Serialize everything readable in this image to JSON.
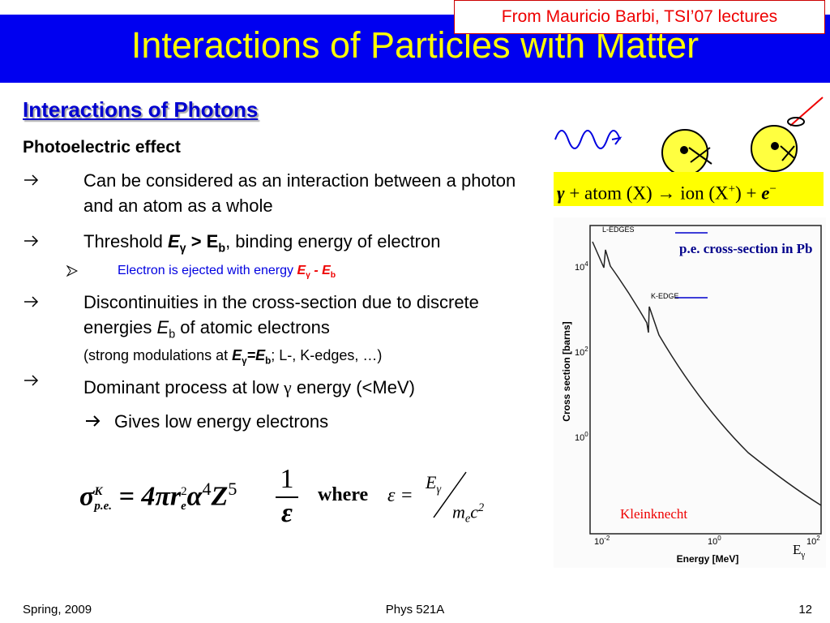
{
  "header": {
    "title": "Interactions of Particles with Matter",
    "credit": "From Mauricio Barbi, TSI’07 lectures"
  },
  "section": {
    "heading": "Interactions of Photons",
    "subheading": "Photoelectric effect"
  },
  "bullets": [
    {
      "parts": [
        "Can be considered as an interaction between a photon and an atom as a whole"
      ]
    },
    {
      "parts": [
        "Threshold ",
        "E",
        "γ",
        " > E",
        "b",
        ", binding energy of electron"
      ]
    },
    {
      "parts": [
        "Electron is ejected with energy ",
        "E",
        "γ",
        " - E",
        "b"
      ]
    },
    {
      "parts": [
        "Discontinuities in the cross-section due to discrete energies ",
        "E",
        "b",
        " of atomic electrons"
      ],
      "note": [
        "(strong modulations at ",
        "E",
        "γ",
        "=E",
        "b",
        "; L-, K-edges, …)"
      ]
    },
    {
      "parts": [
        "Dominant process at low ",
        "γ",
        " energy (<MeV)"
      ]
    },
    {
      "parts": [
        "Gives low energy electrons"
      ]
    }
  ],
  "formula": {
    "sigma": "σ",
    "sup": "K",
    "sub": "p.e.",
    "rhs": "= 4πr",
    "re_sub": "e",
    "re_sup": "2",
    "alpha": "α",
    "alpha_sup": "4",
    "z": "Z",
    "z_sup": "5",
    "num": "1",
    "den": "ε",
    "where": "where",
    "eps": "ε =",
    "e_num": "E",
    "e_num_sub": "γ",
    "m": "m",
    "m_sub": "e",
    "c": "c",
    "c_sup": "2"
  },
  "reaction": {
    "gamma": "γ",
    "lhs": "+ atom (X) → ion (X",
    "plus": "+",
    "rhs": ") +",
    "e": "e",
    "minus": "−"
  },
  "figure": {
    "label": "p.e. cross-section in Pb",
    "credit": "Kleinknecht",
    "x_symbol": "E",
    "x_symbol_sub": "γ",
    "y_axis": "Cross section [barns]",
    "x_axis": "Energy [MeV]",
    "l_edge": "L-EDGES",
    "k_edge": "K-EDGE",
    "yticks": [
      {
        "base": "10",
        "exp": "4"
      },
      {
        "base": "10",
        "exp": "2"
      },
      {
        "base": "10",
        "exp": "0"
      }
    ],
    "xticks": [
      {
        "base": "10",
        "exp": "-2"
      },
      {
        "base": "10",
        "exp": "0"
      },
      {
        "base": "10",
        "exp": "2"
      }
    ]
  },
  "footer": {
    "left": "Spring, 2009",
    "center": "Phys 521A",
    "right": "12"
  }
}
